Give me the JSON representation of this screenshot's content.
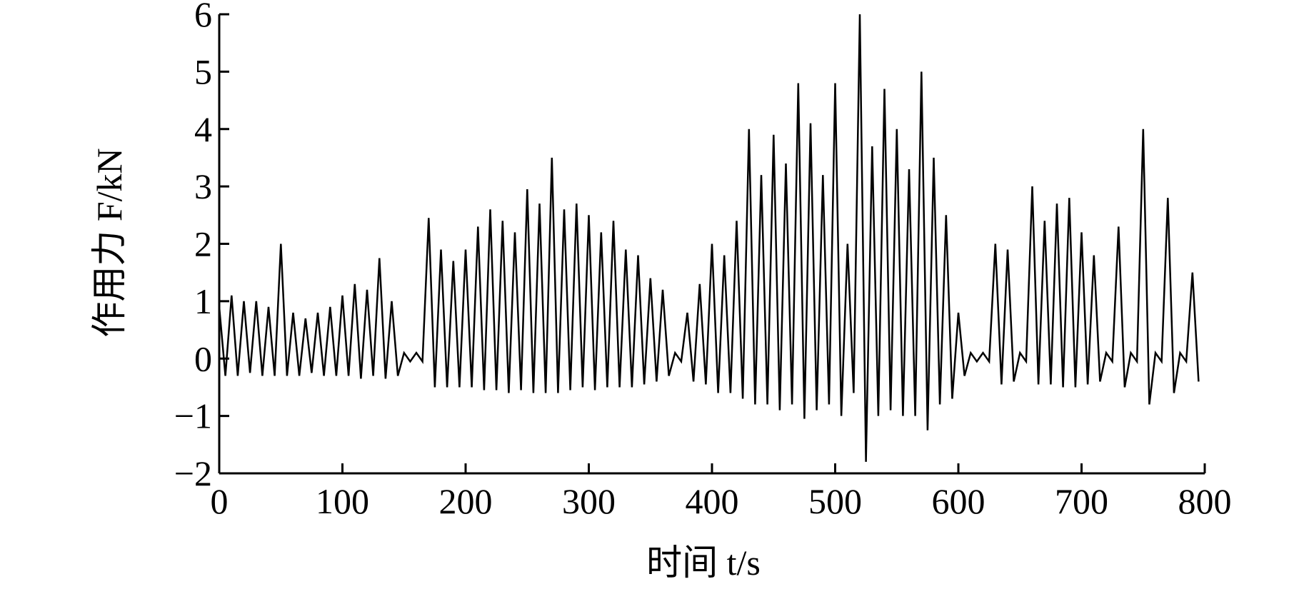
{
  "chart_data": {
    "type": "line",
    "x_label": "时间 t/s",
    "y_label": "作用力 F/kN",
    "xlim": [
      0,
      800
    ],
    "xticks": [
      0,
      100,
      200,
      300,
      400,
      500,
      600,
      700,
      800
    ],
    "ylim": [
      -2,
      6
    ],
    "yticks": [
      {
        "value": -2,
        "label": "−2"
      },
      {
        "value": -1,
        "label": "−1"
      },
      0,
      1,
      2,
      3,
      4,
      5,
      6
    ],
    "series": [
      {
        "color": "#000000",
        "x": [
          0,
          5,
          10,
          15,
          20,
          25,
          30,
          35,
          40,
          45,
          50,
          55,
          60,
          65,
          70,
          75,
          80,
          85,
          90,
          95,
          100,
          105,
          110,
          115,
          120,
          125,
          130,
          135,
          140,
          145,
          150,
          155,
          160,
          165,
          170,
          175,
          180,
          185,
          190,
          195,
          200,
          205,
          210,
          215,
          220,
          225,
          230,
          235,
          240,
          245,
          250,
          255,
          260,
          265,
          270,
          275,
          280,
          285,
          290,
          295,
          300,
          305,
          310,
          315,
          320,
          325,
          330,
          335,
          340,
          345,
          350,
          355,
          360,
          365,
          370,
          375,
          380,
          385,
          390,
          395,
          400,
          405,
          410,
          415,
          420,
          425,
          430,
          435,
          440,
          445,
          450,
          455,
          460,
          465,
          470,
          475,
          480,
          485,
          490,
          495,
          500,
          505,
          510,
          515,
          520,
          525,
          530,
          535,
          540,
          545,
          550,
          555,
          560,
          565,
          570,
          575,
          580,
          585,
          590,
          595,
          600,
          605,
          610,
          615,
          620,
          625,
          630,
          635,
          640,
          645,
          650,
          655,
          660,
          665,
          670,
          675,
          680,
          685,
          690,
          695,
          700,
          705,
          710,
          715,
          720,
          725,
          730,
          735,
          740,
          745,
          750,
          755,
          760,
          765,
          770,
          775,
          780,
          785,
          790,
          795
        ],
        "values": [
          0.9,
          -0.3,
          1.1,
          -0.3,
          1.0,
          -0.25,
          1.0,
          -0.3,
          0.9,
          -0.3,
          2.0,
          -0.3,
          0.8,
          -0.3,
          0.7,
          -0.25,
          0.8,
          -0.3,
          0.9,
          -0.3,
          1.1,
          -0.3,
          1.3,
          -0.35,
          1.2,
          -0.3,
          1.75,
          -0.35,
          1.0,
          -0.3,
          0.1,
          -0.05,
          0.1,
          -0.05,
          2.45,
          -0.5,
          1.9,
          -0.5,
          1.7,
          -0.5,
          1.9,
          -0.5,
          2.3,
          -0.55,
          2.6,
          -0.55,
          2.4,
          -0.6,
          2.2,
          -0.55,
          2.95,
          -0.6,
          2.7,
          -0.6,
          3.5,
          -0.6,
          2.6,
          -0.55,
          2.7,
          -0.5,
          2.5,
          -0.55,
          2.2,
          -0.5,
          2.4,
          -0.5,
          1.9,
          -0.5,
          1.8,
          -0.45,
          1.4,
          -0.4,
          1.2,
          -0.3,
          0.1,
          -0.05,
          0.8,
          -0.4,
          1.3,
          -0.45,
          2.0,
          -0.6,
          1.8,
          -0.6,
          2.4,
          -0.7,
          4.0,
          -0.8,
          3.2,
          -0.8,
          3.9,
          -0.9,
          3.4,
          -0.8,
          4.8,
          -1.05,
          4.1,
          -0.9,
          3.2,
          -0.8,
          4.8,
          -1.0,
          2.0,
          -0.6,
          6.0,
          -1.8,
          3.7,
          -1.0,
          4.7,
          -0.9,
          4.0,
          -1.0,
          3.3,
          -1.0,
          5.0,
          -1.25,
          3.5,
          -0.8,
          2.5,
          -0.7,
          0.8,
          -0.3,
          0.1,
          -0.05,
          0.1,
          -0.05,
          2.0,
          -0.45,
          1.9,
          -0.4,
          0.1,
          -0.05,
          3.0,
          -0.45,
          2.4,
          -0.45,
          2.7,
          -0.5,
          2.8,
          -0.5,
          2.2,
          -0.45,
          1.8,
          -0.4,
          0.1,
          -0.05,
          2.3,
          -0.5,
          0.1,
          -0.05,
          4.0,
          -0.8,
          0.1,
          -0.05,
          2.8,
          -0.6,
          0.1,
          -0.05,
          1.5,
          -0.4
        ]
      }
    ]
  }
}
